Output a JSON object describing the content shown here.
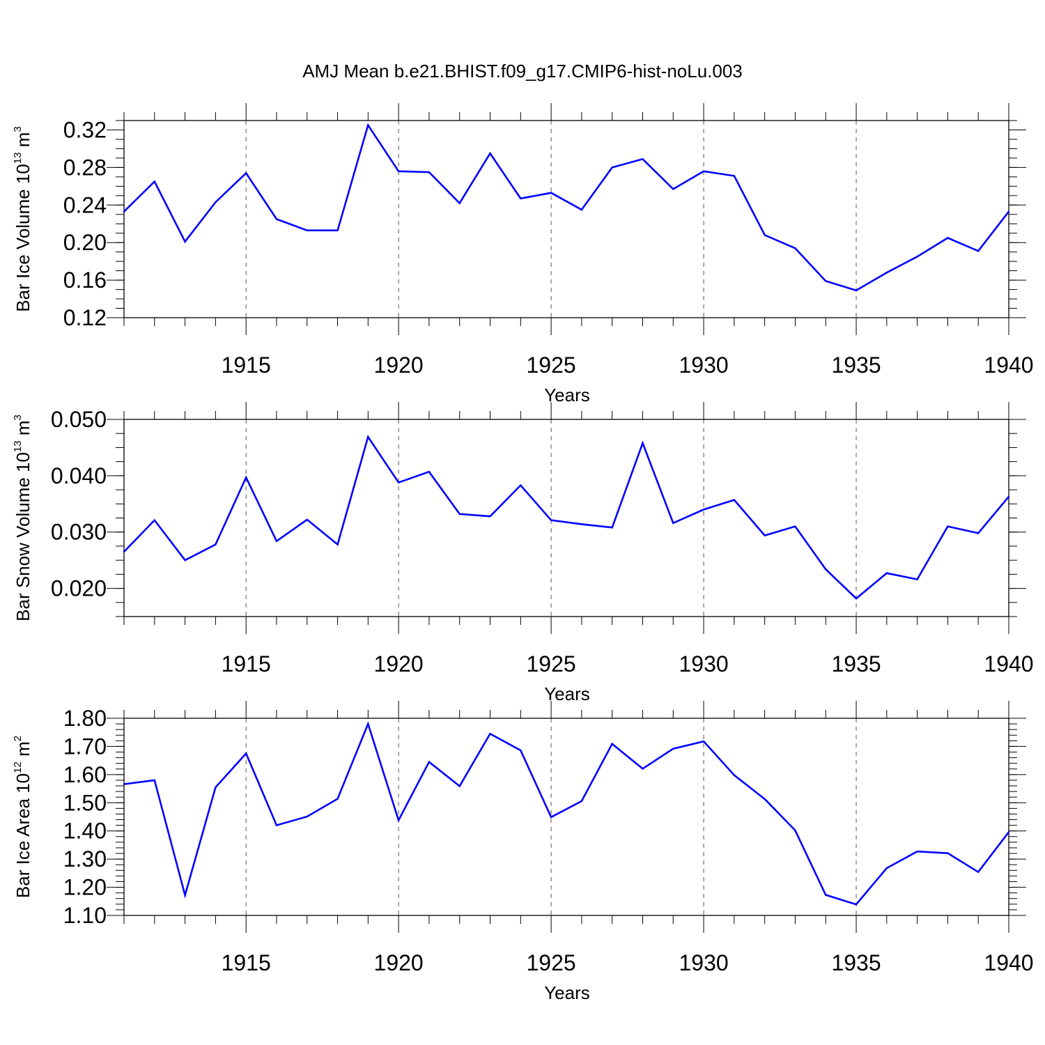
{
  "figure_title": "AMJ Mean b.e21.BHIST.f09_g17.CMIP6-hist-noLu.003",
  "line_color": "#0000ff",
  "chart_data": [
    {
      "type": "line",
      "title": "",
      "xlabel": "Years",
      "ylabel_main": "Bar Ice Volume 10",
      "ylabel_exp": "13",
      "ylabel_unit": " m",
      "ylabel_unit_exp": "3",
      "xlim": [
        1911,
        1940
      ],
      "ylim": [
        0.12,
        0.33
      ],
      "xticks": [
        1915,
        1920,
        1925,
        1930,
        1935,
        1940
      ],
      "xtick_labels": [
        "1915",
        "1920",
        "1925",
        "1930",
        "1935",
        "1940"
      ],
      "yticks": [
        0.12,
        0.16,
        0.2,
        0.24,
        0.28,
        0.32
      ],
      "ytick_labels": [
        "0.12",
        "0.16",
        "0.20",
        "0.24",
        "0.28",
        "0.32"
      ],
      "ytick_minor": 0.01,
      "grid": "dashed vertical at major x ticks",
      "x": [
        1911,
        1912,
        1913,
        1914,
        1915,
        1916,
        1917,
        1918,
        1919,
        1920,
        1921,
        1922,
        1923,
        1924,
        1925,
        1926,
        1927,
        1928,
        1929,
        1930,
        1931,
        1932,
        1933,
        1934,
        1935,
        1936,
        1937,
        1938,
        1939,
        1940
      ],
      "y": [
        0.233,
        0.265,
        0.201,
        0.243,
        0.274,
        0.225,
        0.213,
        0.213,
        0.325,
        0.276,
        0.275,
        0.242,
        0.295,
        0.247,
        0.253,
        0.235,
        0.28,
        0.289,
        0.257,
        0.276,
        0.271,
        0.208,
        0.194,
        0.159,
        0.149,
        0.168,
        0.185,
        0.205,
        0.191,
        0.233
      ]
    },
    {
      "type": "line",
      "title": "",
      "xlabel": "Years",
      "ylabel_main": "Bar Snow Volume 10",
      "ylabel_exp": "13",
      "ylabel_unit": " m",
      "ylabel_unit_exp": "3",
      "xlim": [
        1911,
        1940
      ],
      "ylim": [
        0.015,
        0.05
      ],
      "xticks": [
        1915,
        1920,
        1925,
        1930,
        1935,
        1940
      ],
      "xtick_labels": [
        "1915",
        "1920",
        "1925",
        "1930",
        "1935",
        "1940"
      ],
      "yticks": [
        0.02,
        0.03,
        0.04,
        0.05
      ],
      "ytick_labels": [
        "0.020",
        "0.030",
        "0.040",
        "0.050"
      ],
      "ytick_minor": 0.0025,
      "grid": "dashed vertical at major x ticks",
      "x": [
        1911,
        1912,
        1913,
        1914,
        1915,
        1916,
        1917,
        1918,
        1919,
        1920,
        1921,
        1922,
        1923,
        1924,
        1925,
        1926,
        1927,
        1928,
        1929,
        1930,
        1931,
        1932,
        1933,
        1934,
        1935,
        1936,
        1937,
        1938,
        1939,
        1940
      ],
      "y": [
        0.0265,
        0.0321,
        0.025,
        0.0278,
        0.0397,
        0.0284,
        0.0322,
        0.0278,
        0.0469,
        0.0388,
        0.0407,
        0.0332,
        0.0328,
        0.0383,
        0.0321,
        0.0314,
        0.0308,
        0.0458,
        0.0316,
        0.034,
        0.0357,
        0.0294,
        0.031,
        0.0234,
        0.0182,
        0.0227,
        0.0216,
        0.031,
        0.0298,
        0.0363
      ]
    },
    {
      "type": "line",
      "title": "",
      "xlabel": "Years",
      "ylabel_main": "Bar Ice Area 10",
      "ylabel_exp": "12",
      "ylabel_unit": " m",
      "ylabel_unit_exp": "2",
      "xlim": [
        1911,
        1940
      ],
      "ylim": [
        1.1,
        1.8
      ],
      "xticks": [
        1915,
        1920,
        1925,
        1930,
        1935,
        1940
      ],
      "xtick_labels": [
        "1915",
        "1920",
        "1925",
        "1930",
        "1935",
        "1940"
      ],
      "yticks": [
        1.1,
        1.2,
        1.3,
        1.4,
        1.5,
        1.6,
        1.7,
        1.8
      ],
      "ytick_labels": [
        "1.10",
        "1.20",
        "1.30",
        "1.40",
        "1.50",
        "1.60",
        "1.70",
        "1.80"
      ],
      "ytick_minor": 0.02,
      "grid": "dashed vertical at major x ticks",
      "x": [
        1911,
        1912,
        1913,
        1914,
        1915,
        1916,
        1917,
        1918,
        1919,
        1920,
        1921,
        1922,
        1923,
        1924,
        1925,
        1926,
        1927,
        1928,
        1929,
        1930,
        1931,
        1932,
        1933,
        1934,
        1935,
        1936,
        1937,
        1938,
        1939,
        1940
      ],
      "y": [
        1.566,
        1.58,
        1.172,
        1.555,
        1.675,
        1.42,
        1.451,
        1.514,
        1.78,
        1.438,
        1.645,
        1.559,
        1.745,
        1.686,
        1.449,
        1.506,
        1.709,
        1.621,
        1.692,
        1.718,
        1.598,
        1.513,
        1.402,
        1.173,
        1.139,
        1.268,
        1.327,
        1.321,
        1.254,
        1.396
      ]
    }
  ]
}
